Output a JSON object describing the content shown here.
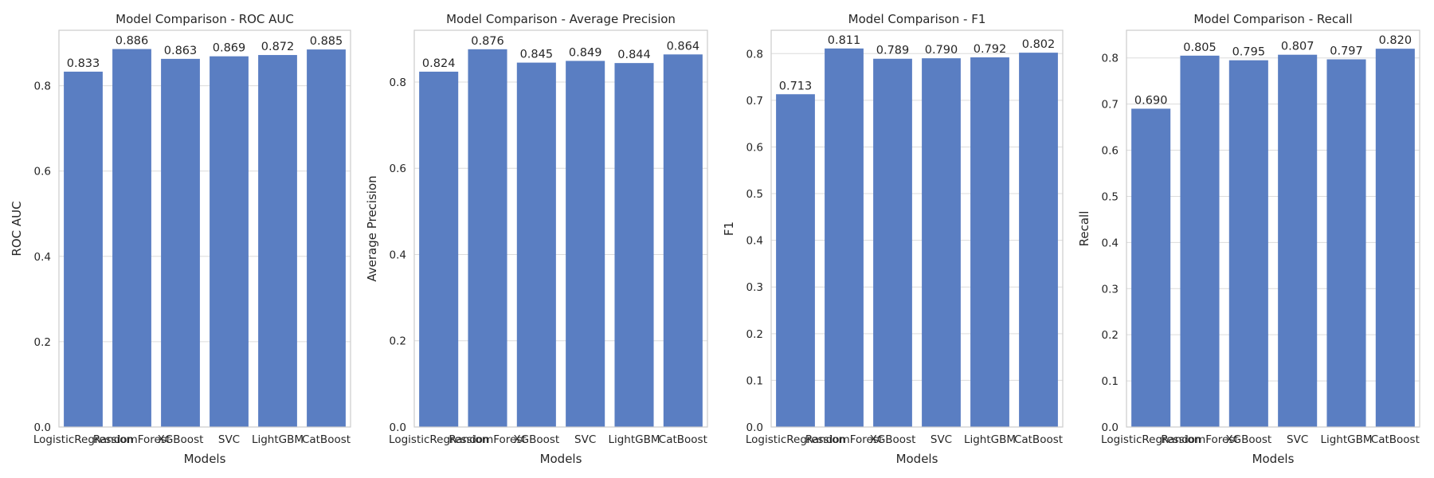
{
  "chart_data": [
    {
      "type": "bar",
      "title": "Model Comparison - ROC AUC",
      "xlabel": "Models",
      "ylabel": "ROC AUC",
      "categories": [
        "LogisticRegression",
        "RandomForest",
        "XGBoost",
        "SVC",
        "LightGBM",
        "CatBoost"
      ],
      "values": [
        0.833,
        0.886,
        0.863,
        0.869,
        0.872,
        0.885
      ],
      "value_labels": [
        "0.833",
        "0.886",
        "0.863",
        "0.869",
        "0.872",
        "0.885"
      ],
      "ylim": [
        0,
        0.93
      ],
      "yticks": [
        0.0,
        0.2,
        0.4,
        0.6,
        0.8
      ],
      "ytick_labels": [
        "0.0",
        "0.2",
        "0.4",
        "0.6",
        "0.8"
      ],
      "grid": true
    },
    {
      "type": "bar",
      "title": "Model Comparison - Average Precision",
      "xlabel": "Models",
      "ylabel": "Average Precision",
      "categories": [
        "LogisticRegression",
        "RandomForest",
        "XGBoost",
        "SVC",
        "LightGBM",
        "CatBoost"
      ],
      "values": [
        0.824,
        0.876,
        0.845,
        0.849,
        0.844,
        0.864
      ],
      "value_labels": [
        "0.824",
        "0.876",
        "0.845",
        "0.849",
        "0.844",
        "0.864"
      ],
      "ylim": [
        0,
        0.92
      ],
      "yticks": [
        0.0,
        0.2,
        0.4,
        0.6,
        0.8
      ],
      "ytick_labels": [
        "0.0",
        "0.2",
        "0.4",
        "0.6",
        "0.8"
      ],
      "grid": true
    },
    {
      "type": "bar",
      "title": "Model Comparison - F1",
      "xlabel": "Models",
      "ylabel": "F1",
      "categories": [
        "LogisticRegression",
        "RandomForest",
        "XGBoost",
        "SVC",
        "LightGBM",
        "CatBoost"
      ],
      "values": [
        0.713,
        0.811,
        0.789,
        0.79,
        0.792,
        0.802
      ],
      "value_labels": [
        "0.713",
        "0.811",
        "0.789",
        "0.790",
        "0.792",
        "0.802"
      ],
      "ylim": [
        0,
        0.85
      ],
      "yticks": [
        0.0,
        0.1,
        0.2,
        0.3,
        0.4,
        0.5,
        0.6,
        0.7,
        0.8
      ],
      "ytick_labels": [
        "0.0",
        "0.1",
        "0.2",
        "0.3",
        "0.4",
        "0.5",
        "0.6",
        "0.7",
        "0.8"
      ],
      "grid": true
    },
    {
      "type": "bar",
      "title": "Model Comparison - Recall",
      "xlabel": "Models",
      "ylabel": "Recall",
      "categories": [
        "LogisticRegression",
        "RandomForest",
        "XGBoost",
        "SVC",
        "LightGBM",
        "CatBoost"
      ],
      "values": [
        0.69,
        0.805,
        0.795,
        0.807,
        0.797,
        0.82
      ],
      "value_labels": [
        "0.690",
        "0.805",
        "0.795",
        "0.807",
        "0.797",
        "0.820"
      ],
      "ylim": [
        0,
        0.86
      ],
      "yticks": [
        0.0,
        0.1,
        0.2,
        0.3,
        0.4,
        0.5,
        0.6,
        0.7,
        0.8
      ],
      "ytick_labels": [
        "0.0",
        "0.1",
        "0.2",
        "0.3",
        "0.4",
        "0.5",
        "0.6",
        "0.7",
        "0.8"
      ],
      "grid": true
    }
  ],
  "colors": {
    "bar": "#5a7ec2",
    "grid": "#dcdcdc",
    "frame": "#cccccc",
    "text": "#262626"
  }
}
